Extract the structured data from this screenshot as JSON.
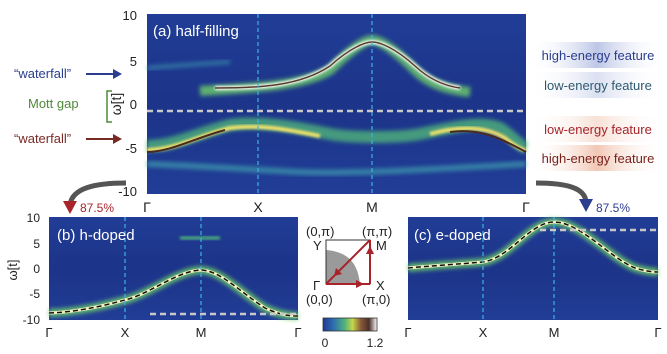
{
  "panels": {
    "a": {
      "title": "(a) half-filling",
      "ylabel": "ω[t]",
      "yticks": [
        "10",
        "5",
        "0",
        "-5",
        "-10"
      ],
      "xticks": [
        "Γ",
        "X",
        "M",
        "Γ"
      ]
    },
    "b": {
      "title": "(b) h-doped",
      "ylabel": "ω[t]",
      "yticks": [
        "10",
        "5",
        "0",
        "-5",
        "-10"
      ],
      "xticks": [
        "Γ",
        "X",
        "M",
        "Γ"
      ]
    },
    "c": {
      "title": "(c) e-doped",
      "xticks": [
        "Γ",
        "X",
        "M",
        "Γ"
      ]
    }
  },
  "annotations": {
    "waterfall_top": "“waterfall”",
    "mott_gap": "Mott gap",
    "waterfall_bottom": "“waterfall”",
    "high_energy_top": "high-energy feature",
    "low_energy_top": "low-energy feature",
    "low_energy_bottom": "low-energy feature",
    "high_energy_bottom": "high-energy feature",
    "hdoped_pct": "87.5%",
    "edoped_pct": "87.5%"
  },
  "bz_inset": {
    "corner_0_pi": "(0,π)",
    "corner_pi_pi": "(π,π)",
    "corner_0_0": "(0,0)",
    "corner_pi_0": "(π,0)",
    "label_Y": "Y",
    "label_M": "M",
    "label_Gamma": "Γ",
    "label_X": "X"
  },
  "colorbar": {
    "min": "0",
    "max": "1.2"
  },
  "colors": {
    "background": "#1f3a93",
    "accent_red": "#a8232a",
    "accent_blue": "#2b3d8f",
    "mott_green": "#4f8a3a"
  }
}
